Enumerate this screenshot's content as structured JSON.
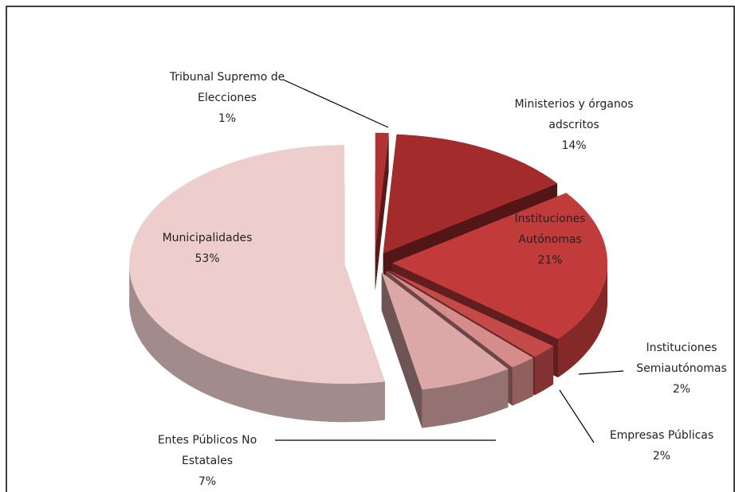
{
  "chart_data": {
    "type": "pie3d",
    "categories": [
      "Tribunal Supremo de Elecciones",
      "Ministerios y órganos adscritos",
      "Instituciones Autónomas",
      "Instituciones Semiautónomas",
      "Empresas Públicas",
      "Entes Públicos No Estatales",
      "Municipalidades"
    ],
    "values": [
      1,
      14,
      21,
      2,
      2,
      7,
      53
    ],
    "value_labels": [
      "1%",
      "14%",
      "21%",
      "2%",
      "2%",
      "7%",
      "53%"
    ],
    "colors": [
      "#b03232",
      "#a32b2b",
      "#c23b3b",
      "#c44a4a",
      "#d78c8c",
      "#dba7a7",
      "#eecdcd"
    ]
  }
}
